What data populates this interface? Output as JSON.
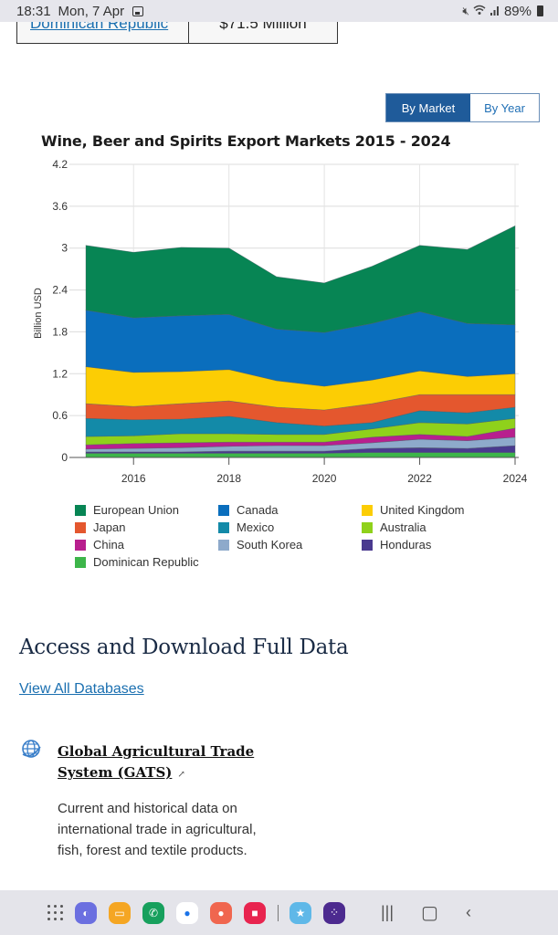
{
  "status_bar": {
    "time": "18:31",
    "date": "Mon, 7 Apr",
    "battery": "89%"
  },
  "table_remnant": {
    "country": "Dominican Republic",
    "value": "$71.5 Million"
  },
  "toggle": {
    "by_market": "By Market",
    "by_year": "By Year",
    "active": "By Market"
  },
  "chart_data": {
    "type": "area",
    "stacked": true,
    "title": "Wine, Beer and Spirits Export Markets 2015 - 2024",
    "xlabel": "",
    "ylabel": "Billion USD",
    "x": [
      2015,
      2016,
      2017,
      2018,
      2019,
      2020,
      2021,
      2022,
      2023,
      2024
    ],
    "xticks": [
      "2016",
      "2018",
      "2020",
      "2022",
      "2024"
    ],
    "yticks": [
      "0",
      "0.6",
      "1.2",
      "1.8",
      "2.4",
      "3",
      "3.6",
      "4.2"
    ],
    "ylim": [
      0,
      4.2
    ],
    "grid": true,
    "legend_position": "bottom",
    "series": [
      {
        "name": "Dominican Republic",
        "color": "#3db54a",
        "values": [
          0.06,
          0.06,
          0.06,
          0.06,
          0.06,
          0.06,
          0.07,
          0.07,
          0.07,
          0.07
        ]
      },
      {
        "name": "Honduras",
        "color": "#4a3a8f",
        "values": [
          0.02,
          0.02,
          0.02,
          0.03,
          0.03,
          0.03,
          0.06,
          0.07,
          0.06,
          0.1
        ]
      },
      {
        "name": "South Korea",
        "color": "#8eaacb",
        "values": [
          0.04,
          0.05,
          0.06,
          0.07,
          0.08,
          0.08,
          0.08,
          0.12,
          0.11,
          0.12
        ]
      },
      {
        "name": "China",
        "color": "#b81f8e",
        "values": [
          0.06,
          0.07,
          0.07,
          0.06,
          0.05,
          0.05,
          0.08,
          0.07,
          0.06,
          0.13
        ]
      },
      {
        "name": "Australia",
        "color": "#8fd11b",
        "values": [
          0.12,
          0.11,
          0.13,
          0.12,
          0.11,
          0.11,
          0.12,
          0.17,
          0.18,
          0.14
        ]
      },
      {
        "name": "Mexico",
        "color": "#138aa8",
        "values": [
          0.26,
          0.23,
          0.21,
          0.25,
          0.17,
          0.12,
          0.09,
          0.17,
          0.16,
          0.16
        ]
      },
      {
        "name": "Japan",
        "color": "#e4572e",
        "values": [
          0.21,
          0.19,
          0.22,
          0.22,
          0.22,
          0.23,
          0.27,
          0.23,
          0.26,
          0.18
        ]
      },
      {
        "name": "United Kingdom",
        "color": "#fccd04",
        "values": [
          0.53,
          0.49,
          0.46,
          0.45,
          0.38,
          0.34,
          0.34,
          0.34,
          0.26,
          0.3
        ]
      },
      {
        "name": "Canada",
        "color": "#0a6ebd",
        "values": [
          0.81,
          0.78,
          0.8,
          0.79,
          0.74,
          0.77,
          0.81,
          0.85,
          0.76,
          0.7
        ]
      },
      {
        "name": "European Union",
        "color": "#078554",
        "values": [
          0.93,
          0.94,
          0.98,
          0.95,
          0.75,
          0.71,
          0.82,
          0.95,
          1.06,
          1.42
        ]
      }
    ]
  },
  "legend": [
    {
      "name": "European Union",
      "color": "#078554"
    },
    {
      "name": "Canada",
      "color": "#0a6ebd"
    },
    {
      "name": "United Kingdom",
      "color": "#fccd04"
    },
    {
      "name": "Japan",
      "color": "#e4572e"
    },
    {
      "name": "Mexico",
      "color": "#138aa8"
    },
    {
      "name": "Australia",
      "color": "#8fd11b"
    },
    {
      "name": "China",
      "color": "#b81f8e"
    },
    {
      "name": "South Korea",
      "color": "#8eaacb"
    },
    {
      "name": "Honduras",
      "color": "#4a3a8f"
    },
    {
      "name": "Dominican Republic",
      "color": "#3db54a"
    }
  ],
  "section": {
    "title": "Access and Download Full Data",
    "view_all": "View All Databases"
  },
  "gats": {
    "title": "Global Agricultural Trade System (GATS)",
    "description": "Current and historical data on international trade in agricultural, fish, forest and textile products."
  },
  "nav_bar": {
    "apps": [
      {
        "name": "internet",
        "color": "#6b6fe0"
      },
      {
        "name": "my-files",
        "color": "#f5a623"
      },
      {
        "name": "phone",
        "color": "#17a05d"
      },
      {
        "name": "messages",
        "color": "#ffffff"
      },
      {
        "name": "contacts",
        "color": "#f0664f"
      },
      {
        "name": "screen-recorder",
        "color": "#e8244f"
      },
      {
        "name": "game",
        "color": "#5fb8e8"
      },
      {
        "name": "game-launcher",
        "color": "#4c2a8f"
      }
    ]
  }
}
